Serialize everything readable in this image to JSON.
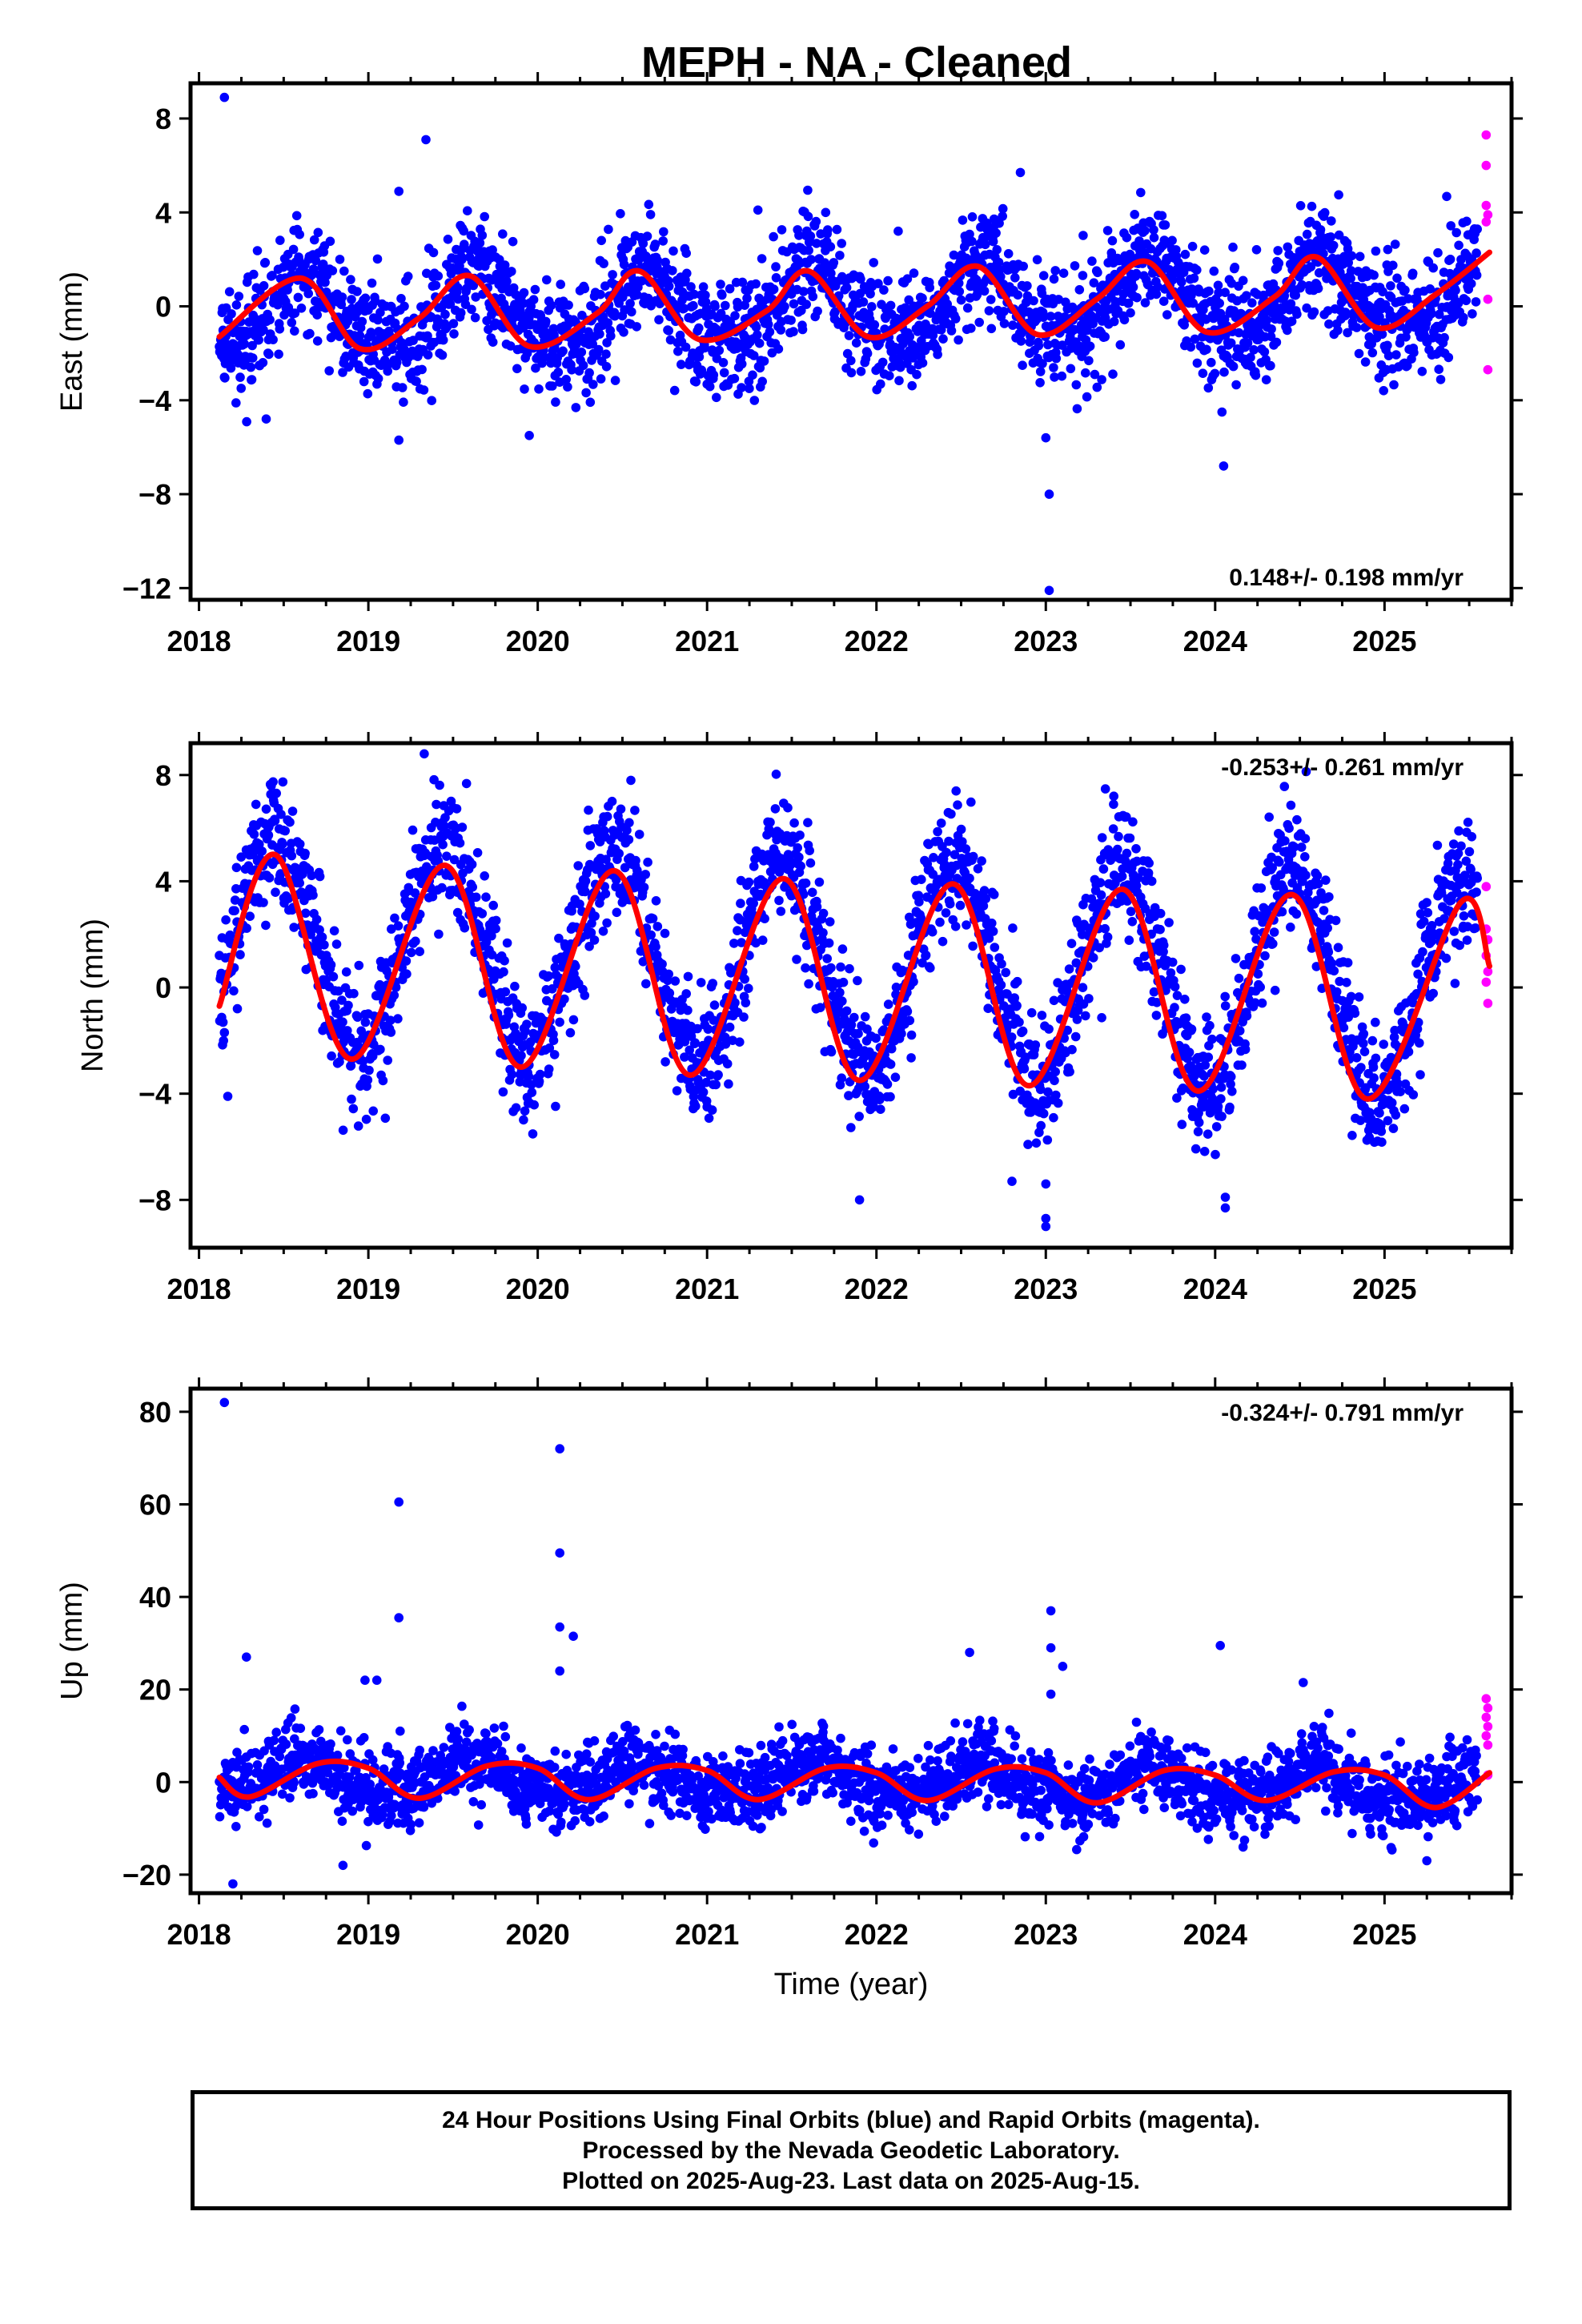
{
  "title": "MEPH  - NA - Cleaned",
  "colors": {
    "final": "#0000ff",
    "rapid": "#ff00ff",
    "fit": "#ff0000"
  },
  "footer": {
    "line1": "24 Hour Positions Using Final Orbits (blue) and Rapid Orbits (magenta).",
    "line2": "Processed by the Nevada Geodetic Laboratory.",
    "line3": "Plotted on 2025-Aug-23. Last data on 2025-Aug-15."
  },
  "chart_data": [
    {
      "type": "scatter",
      "panel": "east",
      "ylabel": "East (mm)",
      "xlabel": "",
      "xlim": [
        2017.95,
        2025.75
      ],
      "ylim": [
        -12.5,
        9.5
      ],
      "xticks": [
        2018,
        2019,
        2020,
        2021,
        2022,
        2023,
        2024,
        2025
      ],
      "yticks": [
        8,
        4,
        0,
        -4,
        -8,
        -12
      ],
      "ytick_labels": [
        "8",
        "4",
        "0",
        "−4",
        "−8",
        "−12"
      ],
      "rate_text": "0.148+/- 0.198 mm/yr",
      "rate_position": "bottom-right",
      "data_start": 2018.12,
      "final_end": 2025.55,
      "rapid_end": 2025.62,
      "model": {
        "mean": 0.0,
        "trend": 0.148,
        "annual_amp": 1.5,
        "annual_peak_phase": 0.62,
        "semiannual_amp": 0.35,
        "noise_sd": 1.2
      },
      "fit_knots": {
        "x": [
          2018.12,
          2018.6,
          2018.95,
          2019.3,
          2019.6,
          2019.95,
          2020.35,
          2020.6,
          2020.95,
          2021.35,
          2021.6,
          2021.95,
          2022.3,
          2022.6,
          2022.95,
          2023.3,
          2023.6,
          2023.95,
          2024.35,
          2024.6,
          2024.95,
          2025.3,
          2025.62
        ],
        "y": [
          -1.3,
          1.2,
          -1.8,
          -0.5,
          1.3,
          -1.7,
          -0.3,
          1.5,
          -1.4,
          -0.2,
          1.5,
          -1.3,
          0.0,
          1.7,
          -1.2,
          0.3,
          1.9,
          -1.1,
          0.4,
          2.1,
          -0.9,
          0.5,
          2.3
        ]
      },
      "outliers": [
        [
          2018.15,
          8.9
        ],
        [
          2019.34,
          7.1
        ],
        [
          2019.18,
          4.9
        ],
        [
          2019.18,
          -5.7
        ],
        [
          2019.95,
          -5.5
        ],
        [
          2023.02,
          -8.0
        ],
        [
          2023.02,
          -12.1
        ],
        [
          2023.0,
          -5.6
        ],
        [
          2024.05,
          -6.8
        ],
        [
          2024.04,
          -4.5
        ],
        [
          2022.85,
          5.7
        ],
        [
          2021.3,
          4.1
        ],
        [
          2021.7,
          4.0
        ]
      ],
      "rapid_points": [
        [
          2025.6,
          7.3
        ],
        [
          2025.6,
          6.0
        ],
        [
          2025.6,
          4.3
        ],
        [
          2025.61,
          3.9
        ],
        [
          2025.6,
          3.6
        ],
        [
          2025.61,
          0.3
        ],
        [
          2025.61,
          -2.7
        ]
      ]
    },
    {
      "type": "scatter",
      "panel": "north",
      "ylabel": "North (mm)",
      "xlabel": "",
      "xlim": [
        2017.95,
        2025.75
      ],
      "ylim": [
        -9.8,
        9.2
      ],
      "xticks": [
        2018,
        2019,
        2020,
        2021,
        2022,
        2023,
        2024,
        2025
      ],
      "yticks": [
        8,
        4,
        0,
        -4,
        -8
      ],
      "ytick_labels": [
        "8",
        "4",
        "0",
        "−4",
        "−8"
      ],
      "rate_text": "-0.253+/- 0.261 mm/yr",
      "rate_position": "top-right",
      "data_start": 2018.12,
      "final_end": 2025.55,
      "rapid_end": 2025.62,
      "model": {
        "mean": 0.8,
        "trend": -0.253,
        "annual_amp": 4.0,
        "annual_peak_phase": 0.45,
        "semiannual_amp": 0.0,
        "noise_sd": 1.2
      },
      "fit_knots": {
        "x": [
          2018.12,
          2018.45,
          2018.9,
          2019.45,
          2019.9,
          2020.45,
          2020.9,
          2021.45,
          2021.9,
          2022.45,
          2022.9,
          2023.45,
          2023.9,
          2024.45,
          2024.9,
          2025.45,
          2025.62
        ],
        "y": [
          -0.7,
          5.0,
          -2.7,
          4.6,
          -3.0,
          4.4,
          -3.3,
          4.1,
          -3.5,
          3.9,
          -3.7,
          3.7,
          -3.9,
          3.5,
          -4.2,
          3.2,
          0.8
        ]
      },
      "outliers": [
        [
          2019.33,
          8.8
        ],
        [
          2020.55,
          7.8
        ],
        [
          2022.47,
          7.4
        ],
        [
          2023.4,
          6.9
        ],
        [
          2018.17,
          -4.1
        ],
        [
          2021.9,
          -8.0
        ],
        [
          2023.0,
          -9.0
        ],
        [
          2023.0,
          -8.7
        ],
        [
          2023.0,
          -7.4
        ],
        [
          2024.06,
          -8.3
        ],
        [
          2024.06,
          -7.9
        ],
        [
          2022.8,
          -7.3
        ]
      ],
      "rapid_points": [
        [
          2025.6,
          3.8
        ],
        [
          2025.6,
          2.2
        ],
        [
          2025.61,
          1.8
        ],
        [
          2025.6,
          1.2
        ],
        [
          2025.61,
          0.6
        ],
        [
          2025.6,
          0.2
        ],
        [
          2025.61,
          -0.6
        ]
      ]
    },
    {
      "type": "scatter",
      "panel": "up",
      "ylabel": "Up (mm)",
      "xlabel": "Time (year)",
      "xlim": [
        2017.95,
        2025.75
      ],
      "ylim": [
        -24,
        85
      ],
      "xticks": [
        2018,
        2019,
        2020,
        2021,
        2022,
        2023,
        2024,
        2025
      ],
      "yticks": [
        80,
        60,
        40,
        20,
        0,
        -20
      ],
      "ytick_labels": [
        "80",
        "60",
        "40",
        "20",
        "0",
        "−20"
      ],
      "rate_text": "-0.324+/- 0.791 mm/yr",
      "rate_position": "top-right",
      "data_start": 2018.12,
      "final_end": 2025.55,
      "rapid_end": 2025.62,
      "model": {
        "mean": 0.0,
        "trend": -0.324,
        "annual_amp": 3.5,
        "annual_peak_phase": 0.6,
        "semiannual_amp": 0.8,
        "noise_sd": 4.0
      },
      "fit_knots": {
        "x": [
          2018.12,
          2018.3,
          2018.7,
          2019.0,
          2019.3,
          2019.7,
          2020.0,
          2020.3,
          2020.7,
          2021.0,
          2021.3,
          2021.7,
          2022.0,
          2022.3,
          2022.7,
          2023.0,
          2023.3,
          2023.7,
          2024.0,
          2024.3,
          2024.7,
          2025.0,
          2025.3,
          2025.62
        ],
        "y": [
          1.0,
          -3.2,
          4.0,
          3.0,
          -3.5,
          3.5,
          3.0,
          -3.8,
          3.0,
          2.5,
          -3.8,
          3.0,
          2.0,
          -4.0,
          2.8,
          2.0,
          -4.5,
          2.5,
          1.5,
          -4.0,
          2.2,
          1.5,
          -5.5,
          2.0
        ]
      },
      "outliers": [
        [
          2018.15,
          82.0
        ],
        [
          2019.18,
          60.5
        ],
        [
          2019.18,
          35.5
        ],
        [
          2020.13,
          72.0
        ],
        [
          2020.13,
          49.5
        ],
        [
          2020.13,
          33.5
        ],
        [
          2020.13,
          24.0
        ],
        [
          2020.21,
          31.5
        ],
        [
          2023.03,
          37.0
        ],
        [
          2023.03,
          29.0
        ],
        [
          2023.1,
          25.0
        ],
        [
          2023.03,
          19.0
        ],
        [
          2024.03,
          29.5
        ],
        [
          2018.28,
          27.0
        ],
        [
          2018.98,
          22.0
        ],
        [
          2019.05,
          22.0
        ],
        [
          2022.55,
          28.0
        ],
        [
          2024.52,
          21.5
        ],
        [
          2018.2,
          -22.0
        ],
        [
          2018.85,
          -18.0
        ],
        [
          2025.25,
          -17.0
        ]
      ],
      "rapid_points": [
        [
          2025.6,
          18.0
        ],
        [
          2025.61,
          16.0
        ],
        [
          2025.6,
          14.0
        ],
        [
          2025.61,
          12.0
        ],
        [
          2025.6,
          10.0
        ],
        [
          2025.61,
          8.0
        ],
        [
          2025.61,
          1.5
        ]
      ]
    }
  ]
}
